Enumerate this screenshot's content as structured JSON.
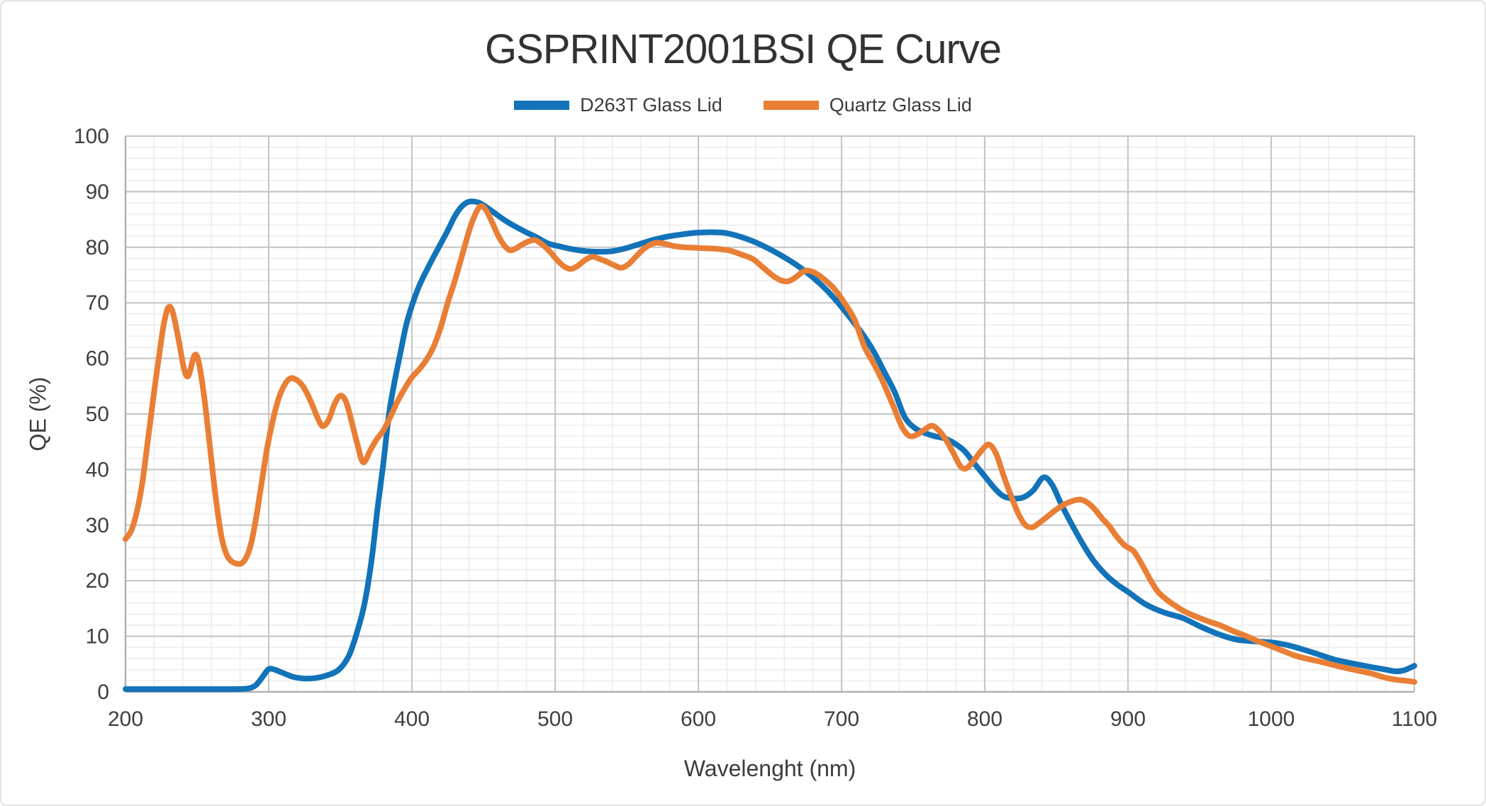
{
  "chart_data": {
    "type": "line",
    "title": "GSPRINT2001BSI QE Curve",
    "legend_position": "top",
    "grid": {
      "major": true,
      "minor": true,
      "major_color": "#c7c7c7",
      "minor_color": "#ededed",
      "axis_color": "#b0b0b0"
    },
    "x_axis": {
      "title": "Wavelenght (nm)",
      "min": 200,
      "max": 1100,
      "major_step": 100,
      "minor_step": 20,
      "ticks": [
        200,
        300,
        400,
        500,
        600,
        700,
        800,
        900,
        1000,
        1100
      ]
    },
    "y_axis": {
      "title": "QE (%)",
      "min": 0,
      "max": 100,
      "major_step": 10,
      "minor_step": 2,
      "ticks": [
        0,
        10,
        20,
        30,
        40,
        50,
        60,
        70,
        80,
        90,
        100
      ]
    },
    "series": [
      {
        "name": "D263T Glass Lid",
        "color": "#1273b9",
        "points": [
          [
            200,
            0.5
          ],
          [
            215,
            0.5
          ],
          [
            230,
            0.5
          ],
          [
            245,
            0.5
          ],
          [
            260,
            0.5
          ],
          [
            275,
            0.5
          ],
          [
            285,
            0.6
          ],
          [
            291,
            1.2
          ],
          [
            296,
            2.8
          ],
          [
            300,
            4.1
          ],
          [
            304,
            4.0
          ],
          [
            310,
            3.4
          ],
          [
            317,
            2.7
          ],
          [
            325,
            2.4
          ],
          [
            333,
            2.5
          ],
          [
            341,
            3.0
          ],
          [
            349,
            4.0
          ],
          [
            356,
            6.5
          ],
          [
            362,
            11
          ],
          [
            367,
            16
          ],
          [
            372,
            24
          ],
          [
            376,
            33
          ],
          [
            380,
            41
          ],
          [
            384,
            50
          ],
          [
            388,
            56
          ],
          [
            392,
            61
          ],
          [
            396,
            66
          ],
          [
            400,
            69.5
          ],
          [
            405,
            73
          ],
          [
            410,
            75.7
          ],
          [
            415,
            78.2
          ],
          [
            420,
            80.6
          ],
          [
            425,
            83
          ],
          [
            430,
            85.6
          ],
          [
            435,
            87.4
          ],
          [
            440,
            88.2
          ],
          [
            446,
            88.1
          ],
          [
            451,
            87.4
          ],
          [
            457,
            86.3
          ],
          [
            464,
            85
          ],
          [
            471,
            83.9
          ],
          [
            479,
            82.8
          ],
          [
            487,
            81.8
          ],
          [
            495,
            80.7
          ],
          [
            504,
            80.1
          ],
          [
            513,
            79.6
          ],
          [
            522,
            79.3
          ],
          [
            531,
            79.2
          ],
          [
            540,
            79.3
          ],
          [
            549,
            79.8
          ],
          [
            558,
            80.5
          ],
          [
            568,
            81.3
          ],
          [
            578,
            81.9
          ],
          [
            588,
            82.3
          ],
          [
            598,
            82.6
          ],
          [
            608,
            82.7
          ],
          [
            618,
            82.6
          ],
          [
            628,
            82
          ],
          [
            638,
            81.1
          ],
          [
            648,
            79.9
          ],
          [
            658,
            78.5
          ],
          [
            668,
            76.9
          ],
          [
            678,
            75
          ],
          [
            688,
            72.7
          ],
          [
            697,
            70.2
          ],
          [
            707,
            67
          ],
          [
            716,
            63.9
          ],
          [
            723,
            61
          ],
          [
            730,
            57.5
          ],
          [
            737,
            54
          ],
          [
            744,
            49.5
          ],
          [
            751,
            47.5
          ],
          [
            758,
            46.6
          ],
          [
            765,
            46
          ],
          [
            772,
            45.6
          ],
          [
            779,
            44.7
          ],
          [
            786,
            43.3
          ],
          [
            793,
            41
          ],
          [
            800,
            38.8
          ],
          [
            807,
            36.6
          ],
          [
            813,
            35.2
          ],
          [
            820,
            34.8
          ],
          [
            827,
            35
          ],
          [
            834,
            36.3
          ],
          [
            841,
            38.6
          ],
          [
            847,
            37.3
          ],
          [
            853,
            34
          ],
          [
            860,
            30.5
          ],
          [
            868,
            26.8
          ],
          [
            876,
            23.6
          ],
          [
            884,
            21.2
          ],
          [
            892,
            19.4
          ],
          [
            900,
            18.0
          ],
          [
            912,
            15.8
          ],
          [
            925,
            14.3
          ],
          [
            938,
            13.3
          ],
          [
            951,
            11.7
          ],
          [
            964,
            10.3
          ],
          [
            976,
            9.4
          ],
          [
            988,
            9.1
          ],
          [
            1000,
            8.9
          ],
          [
            1010,
            8.5
          ],
          [
            1020,
            7.8
          ],
          [
            1030,
            7
          ],
          [
            1043,
            5.9
          ],
          [
            1055,
            5.2
          ],
          [
            1067,
            4.6
          ],
          [
            1078,
            4.1
          ],
          [
            1087,
            3.7
          ],
          [
            1093,
            3.9
          ],
          [
            1100,
            4.7
          ]
        ]
      },
      {
        "name": "Quartz Glass Lid",
        "color": "#e97e35",
        "points": [
          [
            200,
            27.5
          ],
          [
            204,
            29
          ],
          [
            208,
            32.5
          ],
          [
            212,
            38
          ],
          [
            216,
            46
          ],
          [
            220,
            54
          ],
          [
            224,
            61.5
          ],
          [
            227,
            66.5
          ],
          [
            230,
            69.2
          ],
          [
            233,
            68.3
          ],
          [
            237,
            63.5
          ],
          [
            241,
            58
          ],
          [
            244,
            56.9
          ],
          [
            248,
            60.5
          ],
          [
            251,
            59.5
          ],
          [
            255,
            53
          ],
          [
            259,
            44
          ],
          [
            263,
            35
          ],
          [
            267,
            28
          ],
          [
            271,
            24.5
          ],
          [
            276,
            23.2
          ],
          [
            282,
            23.3
          ],
          [
            287,
            26
          ],
          [
            291,
            31
          ],
          [
            295,
            37.5
          ],
          [
            299,
            44
          ],
          [
            303,
            49
          ],
          [
            307,
            52.8
          ],
          [
            311,
            55.2
          ],
          [
            315,
            56.4
          ],
          [
            319,
            56.2
          ],
          [
            323,
            55.3
          ],
          [
            327,
            53.6
          ],
          [
            331,
            51.3
          ],
          [
            335,
            48.8
          ],
          [
            338,
            47.8
          ],
          [
            342,
            49
          ],
          [
            346,
            51.8
          ],
          [
            350,
            53.3
          ],
          [
            354,
            52.2
          ],
          [
            358,
            48.5
          ],
          [
            362,
            44.5
          ],
          [
            366,
            41.3
          ],
          [
            371,
            43.5
          ],
          [
            375,
            45.3
          ],
          [
            380,
            47
          ],
          [
            385,
            49.5
          ],
          [
            390,
            52.3
          ],
          [
            395,
            54.6
          ],
          [
            400,
            56.6
          ],
          [
            405,
            58
          ],
          [
            410,
            59.7
          ],
          [
            415,
            62
          ],
          [
            420,
            65.5
          ],
          [
            425,
            70
          ],
          [
            430,
            74
          ],
          [
            435,
            78.5
          ],
          [
            440,
            83
          ],
          [
            444,
            85.8
          ],
          [
            448,
            87.4
          ],
          [
            452,
            86.6
          ],
          [
            456,
            84.5
          ],
          [
            460,
            82.2
          ],
          [
            464,
            80.5
          ],
          [
            468,
            79.5
          ],
          [
            472,
            79.7
          ],
          [
            477,
            80.5
          ],
          [
            482,
            81.1
          ],
          [
            486,
            81.3
          ],
          [
            491,
            80.5
          ],
          [
            496,
            79.3
          ],
          [
            501,
            77.8
          ],
          [
            506,
            76.6
          ],
          [
            511,
            76.1
          ],
          [
            516,
            76.7
          ],
          [
            521,
            77.7
          ],
          [
            526,
            78.3
          ],
          [
            531,
            77.9
          ],
          [
            536,
            77.4
          ],
          [
            541,
            76.8
          ],
          [
            546,
            76.3
          ],
          [
            551,
            76.9
          ],
          [
            556,
            78.2
          ],
          [
            561,
            79.5
          ],
          [
            566,
            80.4
          ],
          [
            571,
            80.8
          ],
          [
            577,
            80.6
          ],
          [
            583,
            80.2
          ],
          [
            590,
            80
          ],
          [
            598,
            79.9
          ],
          [
            606,
            79.8
          ],
          [
            614,
            79.7
          ],
          [
            622,
            79.4
          ],
          [
            630,
            78.7
          ],
          [
            638,
            77.9
          ],
          [
            645,
            76.4
          ],
          [
            652,
            74.9
          ],
          [
            658,
            74
          ],
          [
            663,
            73.9
          ],
          [
            668,
            74.6
          ],
          [
            673,
            75.6
          ],
          [
            677,
            75.8
          ],
          [
            682,
            75.3
          ],
          [
            688,
            74.2
          ],
          [
            695,
            72.5
          ],
          [
            702,
            70
          ],
          [
            709,
            67
          ],
          [
            716,
            62.1
          ],
          [
            723,
            58.8
          ],
          [
            729,
            55.7
          ],
          [
            736,
            51.5
          ],
          [
            742,
            47.8
          ],
          [
            747,
            46.1
          ],
          [
            752,
            46.2
          ],
          [
            758,
            47.2
          ],
          [
            763,
            47.9
          ],
          [
            768,
            47
          ],
          [
            773,
            45.3
          ],
          [
            778,
            43
          ],
          [
            783,
            40.6
          ],
          [
            787,
            40.2
          ],
          [
            792,
            41.5
          ],
          [
            798,
            43.5
          ],
          [
            803,
            44.5
          ],
          [
            808,
            42.8
          ],
          [
            813,
            39
          ],
          [
            818,
            35.5
          ],
          [
            823,
            32.3
          ],
          [
            828,
            30.1
          ],
          [
            833,
            29.6
          ],
          [
            838,
            30.4
          ],
          [
            844,
            31.6
          ],
          [
            850,
            32.8
          ],
          [
            856,
            33.8
          ],
          [
            862,
            34.4
          ],
          [
            867,
            34.6
          ],
          [
            872,
            34
          ],
          [
            877,
            32.8
          ],
          [
            882,
            31.2
          ],
          [
            887,
            29.8
          ],
          [
            892,
            28
          ],
          [
            898,
            26.3
          ],
          [
            904,
            25.3
          ],
          [
            910,
            22.8
          ],
          [
            916,
            20
          ],
          [
            921,
            18
          ],
          [
            927,
            16.6
          ],
          [
            933,
            15.5
          ],
          [
            940,
            14.4
          ],
          [
            948,
            13.5
          ],
          [
            956,
            12.7
          ],
          [
            964,
            12
          ],
          [
            973,
            11
          ],
          [
            982,
            10.1
          ],
          [
            990,
            9.2
          ],
          [
            998,
            8.4
          ],
          [
            1008,
            7.4
          ],
          [
            1017,
            6.5
          ],
          [
            1026,
            5.9
          ],
          [
            1035,
            5.4
          ],
          [
            1044,
            4.8
          ],
          [
            1052,
            4.3
          ],
          [
            1061,
            3.8
          ],
          [
            1070,
            3.3
          ],
          [
            1079,
            2.6
          ],
          [
            1087,
            2.2
          ],
          [
            1094,
            2.0
          ],
          [
            1100,
            1.8
          ]
        ]
      }
    ]
  }
}
